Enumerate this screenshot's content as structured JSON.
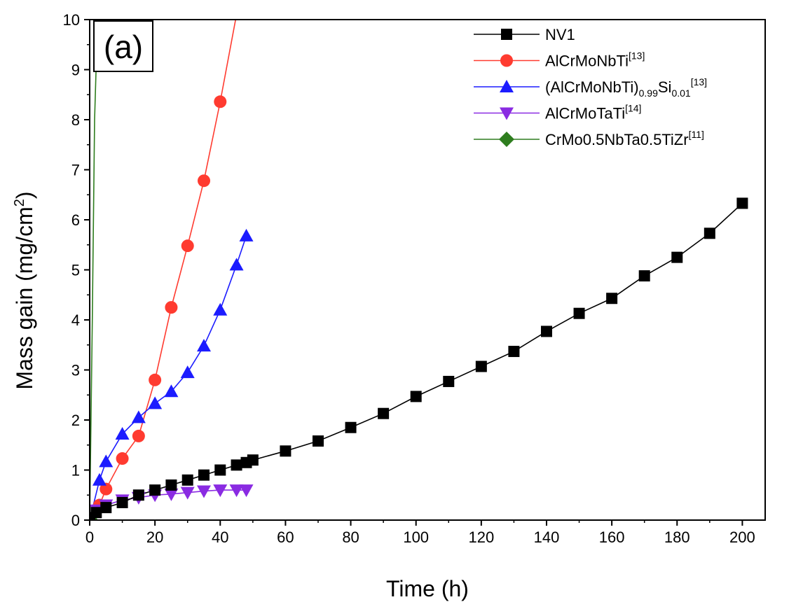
{
  "chart_data": {
    "type": "line",
    "panel_label": "(a)",
    "xlabel": "Time (h)",
    "ylabel_main": "Mass gain (mg/cm",
    "ylabel_sup": "2",
    "ylabel_close": ")",
    "xlim": [
      0,
      207
    ],
    "ylim": [
      0,
      10
    ],
    "xticks": [
      0,
      20,
      40,
      60,
      80,
      100,
      120,
      140,
      160,
      180,
      200
    ],
    "yticks": [
      0,
      1,
      2,
      3,
      4,
      5,
      6,
      7,
      8,
      9,
      10
    ],
    "grid": false,
    "legend_position": "top-right",
    "series": [
      {
        "name": "NV1",
        "legend": {
          "base": "NV1",
          "sub1": "",
          "mid": "",
          "sub2": "",
          "sup": ""
        },
        "color": "#000000",
        "marker": "square",
        "x": [
          0,
          2,
          5,
          10,
          15,
          20,
          25,
          30,
          35,
          40,
          45,
          48,
          50,
          60,
          70,
          80,
          90,
          100,
          110,
          120,
          130,
          140,
          150,
          160,
          170,
          180,
          190,
          200
        ],
        "y": [
          0.05,
          0.15,
          0.25,
          0.35,
          0.5,
          0.6,
          0.7,
          0.8,
          0.9,
          1.0,
          1.1,
          1.15,
          1.2,
          1.38,
          1.58,
          1.85,
          2.13,
          2.47,
          2.77,
          3.07,
          3.37,
          3.77,
          4.13,
          4.43,
          4.88,
          5.25,
          5.73,
          6.33
        ]
      },
      {
        "name": "AlCrMoNbTi[13]",
        "legend": {
          "base": "AlCrMoNbTi",
          "sub1": "",
          "mid": "",
          "sub2": "",
          "sup": "[13]"
        },
        "color": "#ff3b30",
        "marker": "circle",
        "x": [
          0,
          3,
          5,
          10,
          15,
          20,
          25,
          30,
          35,
          40,
          45
        ],
        "y": [
          0,
          0.3,
          0.62,
          1.23,
          1.68,
          2.8,
          4.25,
          5.48,
          6.78,
          8.36,
          10.1
        ],
        "marker_x": [
          3,
          5,
          10,
          15,
          20,
          25,
          30,
          35,
          40
        ],
        "marker_y": [
          0.3,
          0.62,
          1.23,
          1.68,
          2.8,
          4.25,
          5.48,
          6.78,
          8.36
        ]
      },
      {
        "name": "(AlCrMoNbTi)0.99Si0.01[13]",
        "legend": {
          "base": "(AlCrMoNbTi)",
          "sub1": "0.99",
          "mid": "Si",
          "sub2": "0.01",
          "sup": "[13]"
        },
        "color": "#1c1cff",
        "marker": "triangle-up",
        "x": [
          0,
          3,
          5,
          10,
          15,
          20,
          25,
          30,
          35,
          40,
          45,
          48
        ],
        "y": [
          0,
          0.8,
          1.17,
          1.72,
          2.05,
          2.33,
          2.57,
          2.95,
          3.48,
          4.2,
          5.1,
          5.68
        ]
      },
      {
        "name": "AlCrMoTaTi[14]",
        "legend": {
          "base": "AlCrMoTaTi",
          "sub1": "",
          "mid": "",
          "sub2": "",
          "sup": "[14]"
        },
        "color": "#8a2be2",
        "marker": "triangle-down",
        "x": [
          0,
          2,
          5,
          10,
          15,
          20,
          25,
          30,
          35,
          40,
          45,
          48
        ],
        "y": [
          0,
          0.2,
          0.3,
          0.4,
          0.45,
          0.5,
          0.52,
          0.55,
          0.58,
          0.6,
          0.6,
          0.6
        ]
      },
      {
        "name": "CrMo0.5NbTa0.5TiZr[11]",
        "legend": {
          "base": "CrMo0.5NbTa0.5TiZr",
          "sub1": "",
          "mid": "",
          "sub2": "",
          "sup": "[11]"
        },
        "color": "#2e7d1e",
        "marker": "diamond",
        "x": [
          0,
          0.8,
          1.5,
          2.5
        ],
        "y": [
          0,
          4,
          8,
          10.2
        ],
        "marker_x": [
          0
        ],
        "marker_y": [
          0.02
        ]
      }
    ]
  }
}
